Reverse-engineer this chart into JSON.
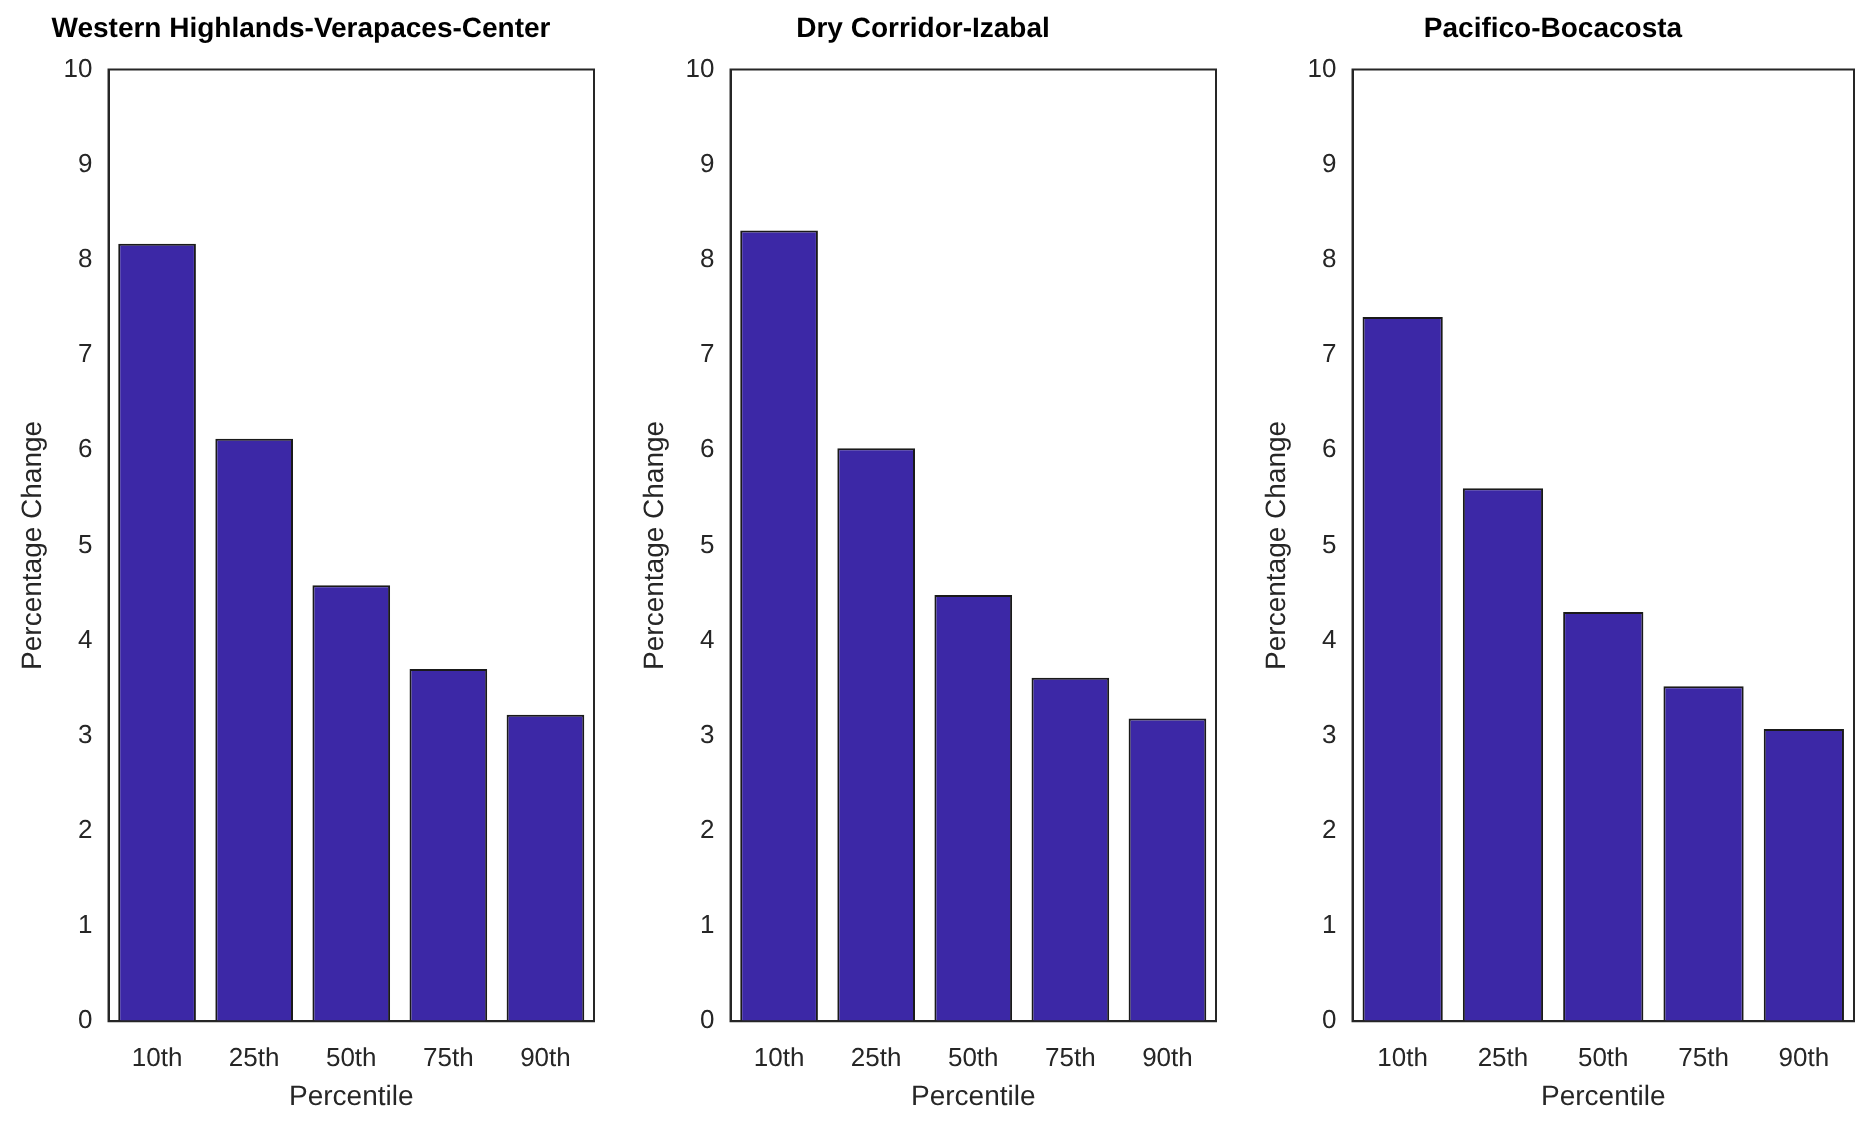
{
  "chart_data": [
    {
      "type": "bar",
      "title": "Western Highlands-Verapaces-Center",
      "xlabel": "Percentile",
      "ylabel": "Percentage Change",
      "categories": [
        "10th",
        "25th",
        "50th",
        "75th",
        "90th"
      ],
      "values": [
        8.17,
        6.12,
        4.58,
        3.7,
        3.22
      ],
      "color": "#3c28a6",
      "ylim": [
        0,
        10
      ],
      "yticks": [
        0,
        1,
        2,
        3,
        4,
        5,
        6,
        7,
        8,
        9,
        10
      ],
      "grid": false,
      "legend": false
    },
    {
      "type": "bar",
      "title": "Dry Corridor-Izabal",
      "xlabel": "Percentile",
      "ylabel": "Percentage Change",
      "categories": [
        "10th",
        "25th",
        "50th",
        "75th",
        "90th"
      ],
      "values": [
        8.31,
        6.02,
        4.48,
        3.61,
        3.18
      ],
      "color": "#3c28a6",
      "ylim": [
        0,
        10
      ],
      "yticks": [
        0,
        1,
        2,
        3,
        4,
        5,
        6,
        7,
        8,
        9,
        10
      ],
      "grid": false,
      "legend": false
    },
    {
      "type": "bar",
      "title": "Pacifico-Bocacosta",
      "xlabel": "Percentile",
      "ylabel": "Percentage Change",
      "categories": [
        "10th",
        "25th",
        "50th",
        "75th",
        "90th"
      ],
      "values": [
        7.4,
        5.6,
        4.3,
        3.52,
        3.07
      ],
      "color": "#3c28a6",
      "ylim": [
        0,
        10
      ],
      "yticks": [
        0,
        1,
        2,
        3,
        4,
        5,
        6,
        7,
        8,
        9,
        10
      ],
      "grid": false,
      "legend": false
    }
  ]
}
